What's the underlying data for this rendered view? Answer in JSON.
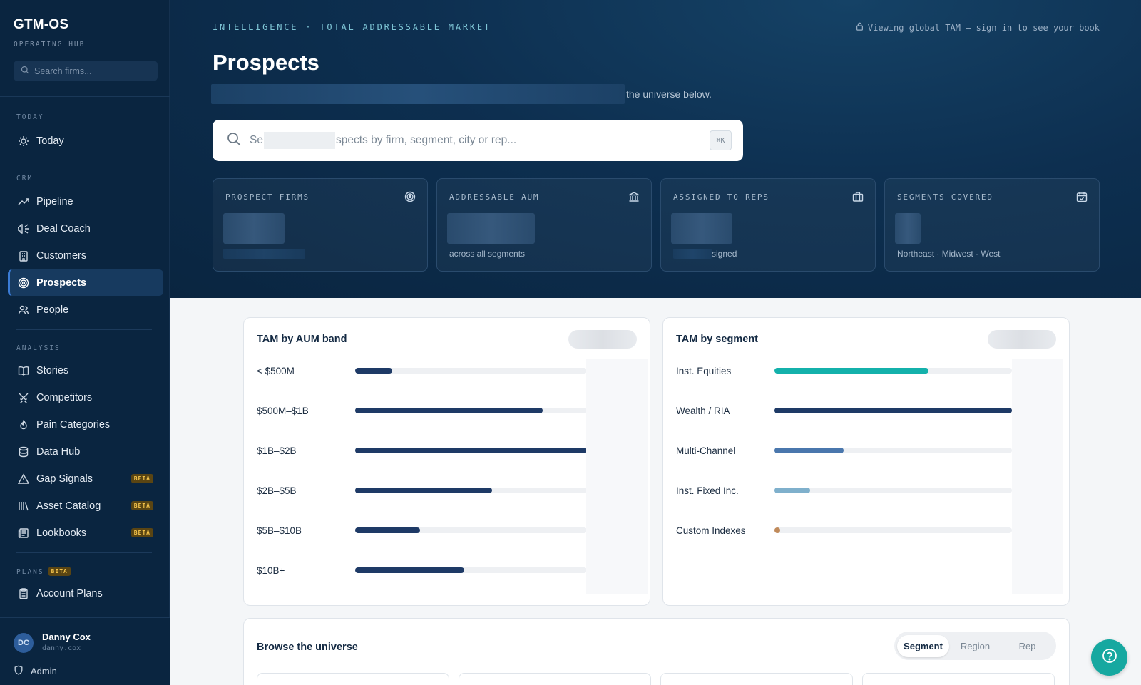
{
  "sidebar": {
    "brand": "GTM-OS",
    "brand_sub": "OPERATING HUB",
    "search_placeholder": "Search firms...",
    "sections": {
      "today": "TODAY",
      "crm": "CRM",
      "analysis": "ANALYSIS",
      "plans": "PLANS",
      "plans_badge": "BETA"
    },
    "items": {
      "today": "Today",
      "pipeline": "Pipeline",
      "deal_coach": "Deal Coach",
      "customers": "Customers",
      "prospects": "Prospects",
      "people": "People",
      "stories": "Stories",
      "competitors": "Competitors",
      "pain_categories": "Pain Categories",
      "data_hub": "Data Hub",
      "gap_signals": "Gap Signals",
      "asset_catalog": "Asset Catalog",
      "lookbooks": "Lookbooks",
      "account_plans": "Account Plans"
    },
    "beta_label": "BETA",
    "user": {
      "initials": "DC",
      "name": "Danny Cox",
      "handle": "danny.cox",
      "role_link": "Admin"
    }
  },
  "header": {
    "eyebrow": "INTELLIGENCE · TOTAL ADDRESSABLE MARKET",
    "viewing_notice": "Viewing global TAM — sign in to see your book",
    "title": "Prospects",
    "subtitle_tail": "the universe below.",
    "search_prefix": "Se",
    "search_suffix": "spects by firm, segment, city or rep...",
    "search_shortcut": "⌘K"
  },
  "kpis": [
    {
      "label": "PROSPECT FIRMS",
      "sub": "",
      "icon": "target-icon"
    },
    {
      "label": "ADDRESSABLE AUM",
      "sub": "across all segments",
      "icon": "bank-icon"
    },
    {
      "label": "ASSIGNED TO REPS",
      "sub": "signed",
      "icon": "briefcase-icon"
    },
    {
      "label": "SEGMENTS COVERED",
      "sub": "Northeast · Midwest · West",
      "icon": "calendar-icon"
    }
  ],
  "tam_aum": {
    "title": "TAM by AUM band",
    "bands": [
      {
        "label": "< $500M",
        "fill": 0.16
      },
      {
        "label": "$500M–$1B",
        "fill": 0.81
      },
      {
        "label": "$1B–$2B",
        "fill": 1.0
      },
      {
        "label": "$2B–$5B",
        "fill": 0.59
      },
      {
        "label": "$5B–$10B",
        "fill": 0.28
      },
      {
        "label": "$10B+",
        "fill": 0.47
      }
    ]
  },
  "tam_segment": {
    "title": "TAM by segment",
    "segments": [
      {
        "label": "Inst. Equities",
        "fill": 0.65,
        "color": "#14b1ab"
      },
      {
        "label": "Wealth / RIA",
        "fill": 1.0,
        "color": "#1e3a66"
      },
      {
        "label": "Multi-Channel",
        "fill": 0.29,
        "color": "#4a77ad"
      },
      {
        "label": "Inst. Fixed Inc.",
        "fill": 0.15,
        "color": "#7fb0cc"
      },
      {
        "label": "Custom Indexes",
        "fill": 0.02,
        "color": "#c08a5a"
      }
    ]
  },
  "browse": {
    "title": "Browse the universe",
    "tabs": {
      "segment": "Segment",
      "region": "Region",
      "rep": "Rep"
    }
  },
  "colors": {
    "sidebar_bg": "#0a2540",
    "accent": "#3a7bd5",
    "teal": "#16a8a0",
    "bar_navy": "#1e3a66"
  }
}
